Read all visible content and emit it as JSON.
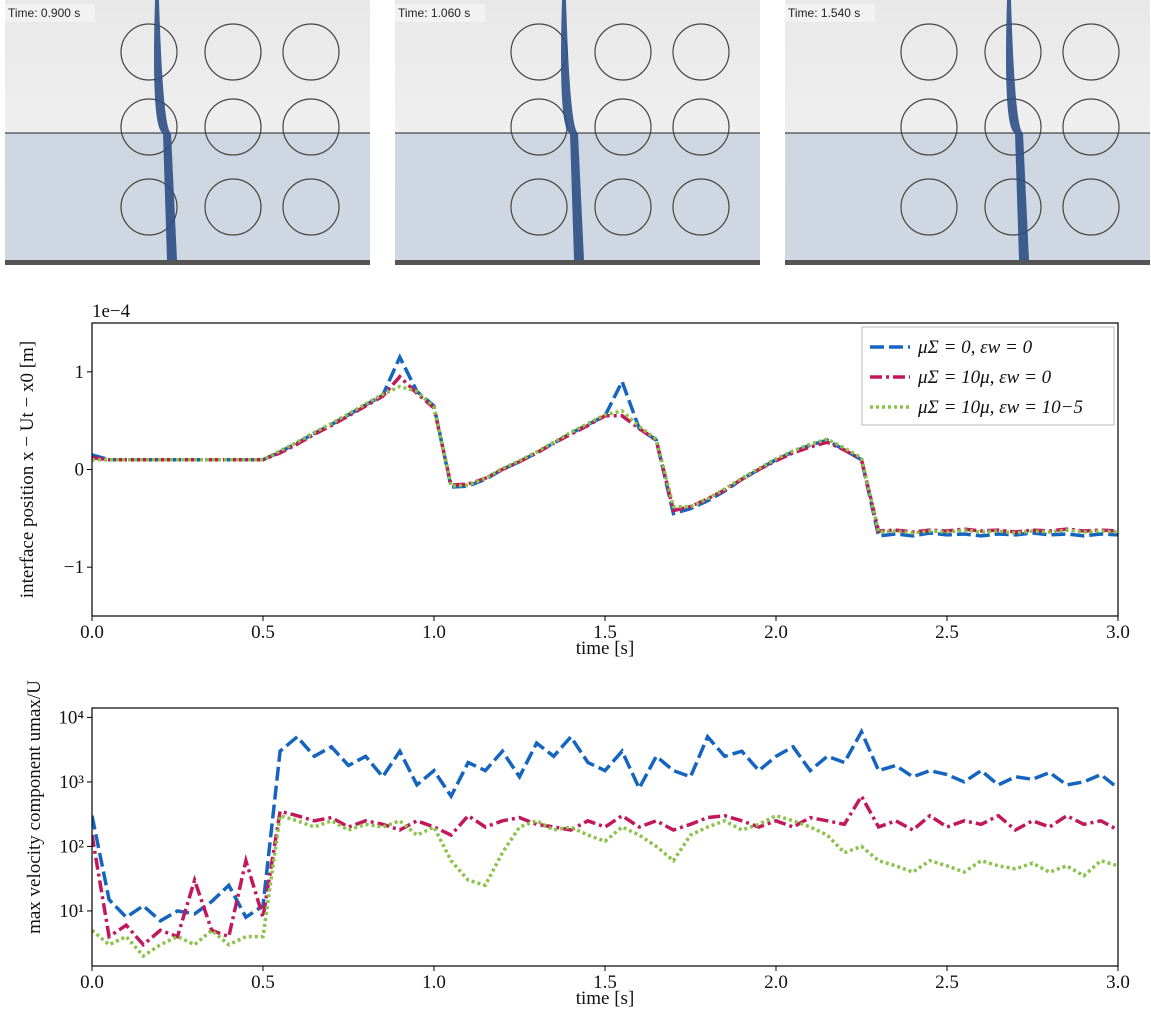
{
  "panels": [
    {
      "label": "Time: 0.900 s"
    },
    {
      "label": "Time: 1.060 s"
    },
    {
      "label": "Time: 1.540 s"
    }
  ],
  "chart_data": [
    {
      "type": "line",
      "ylabel": "interface position x − Ut − x0 [m]",
      "xlabel": "time [s]",
      "y_offset_label": "1e−4",
      "legend": "upper right",
      "x": [
        0,
        0.05,
        0.1,
        0.15,
        0.2,
        0.25,
        0.3,
        0.35,
        0.4,
        0.45,
        0.5,
        0.55,
        0.6,
        0.65,
        0.7,
        0.75,
        0.8,
        0.85,
        0.9,
        0.95,
        1,
        1.05,
        1.1,
        1.15,
        1.2,
        1.25,
        1.3,
        1.35,
        1.4,
        1.45,
        1.5,
        1.55,
        1.6,
        1.65,
        1.7,
        1.75,
        1.8,
        1.85,
        1.9,
        1.95,
        2,
        2.05,
        2.1,
        2.15,
        2.2,
        2.25,
        2.3,
        2.35,
        2.4,
        2.45,
        2.5,
        2.55,
        2.6,
        2.65,
        2.7,
        2.75,
        2.8,
        2.85,
        2.9,
        2.95,
        3
      ],
      "xlim": [
        0,
        3
      ],
      "xticks": [
        {
          "value": 0,
          "label": "0.0"
        },
        0.5,
        {
          "value": 1,
          "label": "1.0"
        },
        1.5,
        {
          "value": 2,
          "label": "2.0"
        },
        2.5,
        {
          "value": 3,
          "label": "3.0"
        }
      ],
      "ylim": [
        -1.5,
        1.5
      ],
      "yticks": [
        {
          "value": -1,
          "label": "−1"
        },
        0,
        1
      ],
      "series": [
        {
          "name": "μΣ = 0,    εw = 0",
          "color": "#1565c0",
          "linestyle": "dashed",
          "values": [
            0.15,
            0.1,
            0.1,
            0.1,
            0.1,
            0.1,
            0.1,
            0.1,
            0.1,
            0.1,
            0.1,
            0.18,
            0.27,
            0.37,
            0.46,
            0.56,
            0.66,
            0.76,
            1.15,
            0.8,
            0.65,
            -0.18,
            -0.17,
            -0.1,
            0,
            0.08,
            0.17,
            0.27,
            0.37,
            0.46,
            0.55,
            0.9,
            0.42,
            0.3,
            -0.45,
            -0.4,
            -0.32,
            -0.22,
            -0.1,
            0,
            0.1,
            0.18,
            0.25,
            0.3,
            0.2,
            0.1,
            -0.68,
            -0.66,
            -0.68,
            -0.65,
            -0.67,
            -0.66,
            -0.68,
            -0.66,
            -0.67,
            -0.65,
            -0.67,
            -0.66,
            -0.68,
            -0.66,
            -0.67
          ]
        },
        {
          "name": "μΣ = 10μ, εw = 0",
          "color": "#c2185b",
          "linestyle": "dashdot",
          "values": [
            0.12,
            0.1,
            0.1,
            0.1,
            0.1,
            0.1,
            0.1,
            0.1,
            0.1,
            0.1,
            0.1,
            0.17,
            0.26,
            0.36,
            0.45,
            0.55,
            0.65,
            0.75,
            0.95,
            0.78,
            0.63,
            -0.16,
            -0.15,
            -0.09,
            0,
            0.08,
            0.17,
            0.27,
            0.36,
            0.45,
            0.55,
            0.55,
            0.42,
            0.3,
            -0.42,
            -0.38,
            -0.3,
            -0.21,
            -0.1,
            0,
            0.09,
            0.17,
            0.23,
            0.28,
            0.2,
            0.1,
            -0.63,
            -0.62,
            -0.64,
            -0.62,
            -0.63,
            -0.61,
            -0.63,
            -0.62,
            -0.64,
            -0.62,
            -0.63,
            -0.61,
            -0.63,
            -0.62,
            -0.63
          ]
        },
        {
          "name": "μΣ = 10μ, εw = 10−5",
          "color": "#8bc34a",
          "linestyle": "dotted",
          "values": [
            0.1,
            0.1,
            0.1,
            0.1,
            0.1,
            0.1,
            0.1,
            0.1,
            0.1,
            0.1,
            0.1,
            0.19,
            0.28,
            0.38,
            0.47,
            0.57,
            0.67,
            0.77,
            0.85,
            0.8,
            0.64,
            -0.17,
            -0.16,
            -0.09,
            0.01,
            0.09,
            0.18,
            0.28,
            0.38,
            0.47,
            0.56,
            0.6,
            0.44,
            0.31,
            -0.38,
            -0.38,
            -0.3,
            -0.2,
            -0.09,
            0.01,
            0.11,
            0.19,
            0.26,
            0.31,
            0.22,
            0.12,
            -0.64,
            -0.63,
            -0.65,
            -0.63,
            -0.64,
            -0.62,
            -0.64,
            -0.63,
            -0.65,
            -0.63,
            -0.64,
            -0.62,
            -0.64,
            -0.63,
            -0.64
          ]
        }
      ]
    },
    {
      "type": "line",
      "ylabel": "max velocity component umax/U",
      "xlabel": "time [s]",
      "log_y": true,
      "x": [
        0,
        0.05,
        0.1,
        0.15,
        0.2,
        0.25,
        0.3,
        0.35,
        0.4,
        0.45,
        0.5,
        0.55,
        0.6,
        0.65,
        0.7,
        0.75,
        0.8,
        0.85,
        0.9,
        0.95,
        1,
        1.05,
        1.1,
        1.15,
        1.2,
        1.25,
        1.3,
        1.35,
        1.4,
        1.45,
        1.5,
        1.55,
        1.6,
        1.65,
        1.7,
        1.75,
        1.8,
        1.85,
        1.9,
        1.95,
        2,
        2.05,
        2.1,
        2.15,
        2.2,
        2.25,
        2.3,
        2.35,
        2.4,
        2.45,
        2.5,
        2.55,
        2.6,
        2.65,
        2.7,
        2.75,
        2.8,
        2.85,
        2.9,
        2.95,
        3
      ],
      "xlim": [
        0,
        3
      ],
      "xticks": [
        {
          "value": 0,
          "label": "0.0"
        },
        0.5,
        {
          "value": 1,
          "label": "1.0"
        },
        1.5,
        {
          "value": 2,
          "label": "2.0"
        },
        2.5,
        {
          "value": 3,
          "label": "3.0"
        }
      ],
      "ylim": [
        1.4,
        14000
      ],
      "yticks": [
        {
          "value": 10,
          "label": "10¹"
        },
        {
          "value": 100,
          "label": "10²"
        },
        {
          "value": 1000,
          "label": "10³"
        },
        {
          "value": 10000,
          "label": "10⁴"
        }
      ],
      "series": [
        {
          "color": "#1565c0",
          "linestyle": "dashed",
          "values": [
            300,
            15,
            8,
            12,
            7,
            10,
            9,
            14,
            25,
            8,
            12,
            3000,
            5000,
            2500,
            3500,
            1800,
            2500,
            1200,
            3000,
            900,
            1500,
            600,
            2000,
            1500,
            3000,
            1200,
            4000,
            2500,
            5000,
            2000,
            1500,
            3000,
            800,
            2500,
            1500,
            1200,
            5000,
            2500,
            3000,
            1500,
            2500,
            3500,
            1500,
            2500,
            2000,
            6000,
            1500,
            1800,
            1200,
            1500,
            1300,
            1000,
            1500,
            900,
            1200,
            1100,
            1400,
            900,
            1000,
            1300,
            800
          ]
        },
        {
          "color": "#c2185b",
          "linestyle": "dashdot",
          "values": [
            150,
            4,
            6,
            3,
            5,
            4,
            30,
            5,
            4,
            60,
            8,
            350,
            300,
            250,
            280,
            200,
            250,
            220,
            180,
            250,
            200,
            150,
            300,
            200,
            250,
            280,
            220,
            200,
            180,
            250,
            200,
            300,
            200,
            250,
            180,
            220,
            280,
            300,
            250,
            200,
            250,
            200,
            280,
            250,
            220,
            600,
            200,
            250,
            180,
            300,
            200,
            250,
            220,
            300,
            180,
            250,
            200,
            300,
            220,
            250,
            180
          ]
        },
        {
          "color": "#8bc34a",
          "linestyle": "dotted",
          "values": [
            5,
            3,
            4,
            2,
            3,
            4,
            3,
            5,
            3,
            4,
            4,
            300,
            250,
            200,
            250,
            180,
            220,
            200,
            250,
            150,
            200,
            60,
            30,
            25,
            80,
            200,
            250,
            180,
            200,
            150,
            120,
            200,
            150,
            100,
            60,
            150,
            200,
            250,
            180,
            220,
            300,
            250,
            200,
            150,
            80,
            100,
            60,
            50,
            40,
            60,
            50,
            40,
            60,
            50,
            45,
            55,
            40,
            50,
            35,
            60,
            50
          ]
        }
      ]
    }
  ]
}
